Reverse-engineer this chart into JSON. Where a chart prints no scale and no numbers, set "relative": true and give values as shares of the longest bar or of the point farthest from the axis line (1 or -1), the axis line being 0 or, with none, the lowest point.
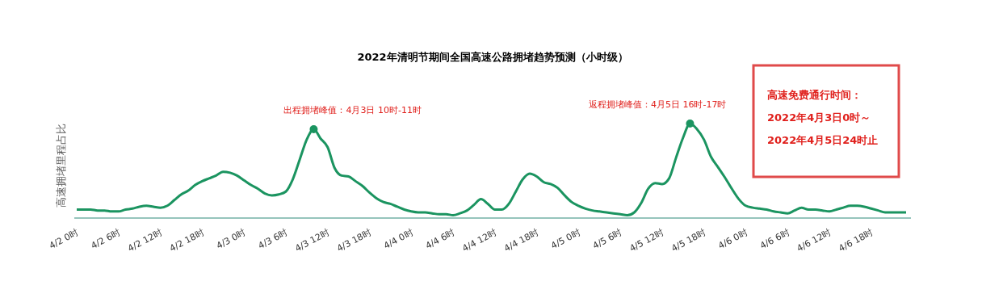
{
  "chart_data": {
    "type": "line",
    "title": "2022年清明节期间全国高速公路拥堵趋势预测（小时级）",
    "ylabel": "高速拥堵里程占比",
    "relative": true,
    "categories": [
      "4/2 0时",
      null,
      null,
      null,
      null,
      null,
      "4/2 6时",
      null,
      null,
      null,
      null,
      null,
      "4/2 12时",
      null,
      null,
      null,
      null,
      null,
      "4/2 18时",
      null,
      null,
      null,
      null,
      null,
      "4/3 0时",
      null,
      null,
      null,
      null,
      null,
      "4/3 6时",
      null,
      null,
      null,
      null,
      null,
      "4/3 12时",
      null,
      null,
      null,
      null,
      null,
      "4/3 18时",
      null,
      null,
      null,
      null,
      null,
      "4/4 0时",
      null,
      null,
      null,
      null,
      null,
      "4/4 6时",
      null,
      null,
      null,
      null,
      null,
      "4/4 12时",
      null,
      null,
      null,
      null,
      null,
      "4/4 18时",
      null,
      null,
      null,
      null,
      null,
      "4/5 0时",
      null,
      null,
      null,
      null,
      null,
      "4/5 6时",
      null,
      null,
      null,
      null,
      null,
      "4/5 12时",
      null,
      null,
      null,
      null,
      null,
      "4/5 18时",
      null,
      null,
      null,
      null,
      null,
      "4/6 0时",
      null,
      null,
      null,
      null,
      null,
      "4/6 6时",
      null,
      null,
      null,
      null,
      null,
      "4/6 12时",
      null,
      null,
      null,
      null,
      null,
      "4/6 18时",
      null,
      null,
      null,
      null,
      null
    ],
    "series": [
      {
        "color": "#1b9460",
        "marker": "none",
        "values": [
          0.09,
          0.09,
          0.09,
          0.08,
          0.08,
          0.07,
          0.07,
          0.09,
          0.1,
          0.12,
          0.13,
          0.12,
          0.11,
          0.13,
          0.19,
          0.25,
          0.29,
          0.35,
          0.39,
          0.42,
          0.45,
          0.49,
          0.48,
          0.45,
          0.4,
          0.35,
          0.31,
          0.26,
          0.24,
          0.25,
          0.28,
          0.41,
          0.62,
          0.83,
          0.94,
          0.84,
          0.75,
          0.53,
          0.45,
          0.44,
          0.39,
          0.34,
          0.27,
          0.21,
          0.17,
          0.15,
          0.12,
          0.09,
          0.07,
          0.06,
          0.06,
          0.05,
          0.04,
          0.04,
          0.03,
          0.05,
          0.08,
          0.14,
          0.2,
          0.15,
          0.09,
          0.09,
          0.15,
          0.28,
          0.41,
          0.47,
          0.44,
          0.38,
          0.36,
          0.32,
          0.24,
          0.17,
          0.13,
          0.1,
          0.08,
          0.07,
          0.06,
          0.05,
          0.04,
          0.03,
          0.06,
          0.16,
          0.31,
          0.37,
          0.36,
          0.42,
          0.64,
          0.85,
          1,
          0.94,
          0.83,
          0.65,
          0.54,
          0.43,
          0.31,
          0.2,
          0.13,
          0.11,
          0.1,
          0.09,
          0.07,
          0.06,
          0.05,
          0.08,
          0.11,
          0.09,
          0.09,
          0.08,
          0.07,
          0.09,
          0.11,
          0.13,
          0.13,
          0.12,
          0.1,
          0.08,
          0.06,
          0.06,
          0.06,
          0.06
        ]
      },
      {
        "type": "scatter",
        "color": "#1b9460",
        "marker": "circle",
        "values": [
          null,
          null,
          null,
          null,
          null,
          null,
          null,
          null,
          null,
          null,
          null,
          null,
          null,
          null,
          null,
          null,
          null,
          null,
          null,
          null,
          null,
          null,
          null,
          null,
          null,
          null,
          null,
          null,
          null,
          null,
          null,
          null,
          null,
          null,
          0.94,
          null,
          null,
          null,
          null,
          null,
          null,
          null,
          null,
          null,
          null,
          null,
          null,
          null,
          null,
          null,
          null,
          null,
          null,
          null,
          null,
          null,
          null,
          null,
          null,
          null,
          null,
          null,
          null,
          null,
          null,
          null,
          null,
          null,
          null,
          null,
          null,
          null,
          null,
          null,
          null,
          null,
          null,
          null,
          null,
          null,
          null,
          null,
          null,
          null,
          null,
          null,
          null,
          null,
          1,
          null,
          null,
          null,
          null,
          null,
          null,
          null,
          null,
          null,
          null,
          null,
          null,
          null,
          null,
          null,
          null,
          null,
          null,
          null,
          null,
          null,
          null,
          null,
          null,
          null,
          null,
          null,
          null,
          null,
          null,
          null
        ]
      }
    ],
    "annotations": [
      "出程拥堵峰值：4月3日 10时-11时",
      "返程拥堵峰值：4月5日 16时-17时",
      "高速免费通行时间：",
      "2022年4月3日0时～",
      "2022年4月5日24时止"
    ]
  }
}
